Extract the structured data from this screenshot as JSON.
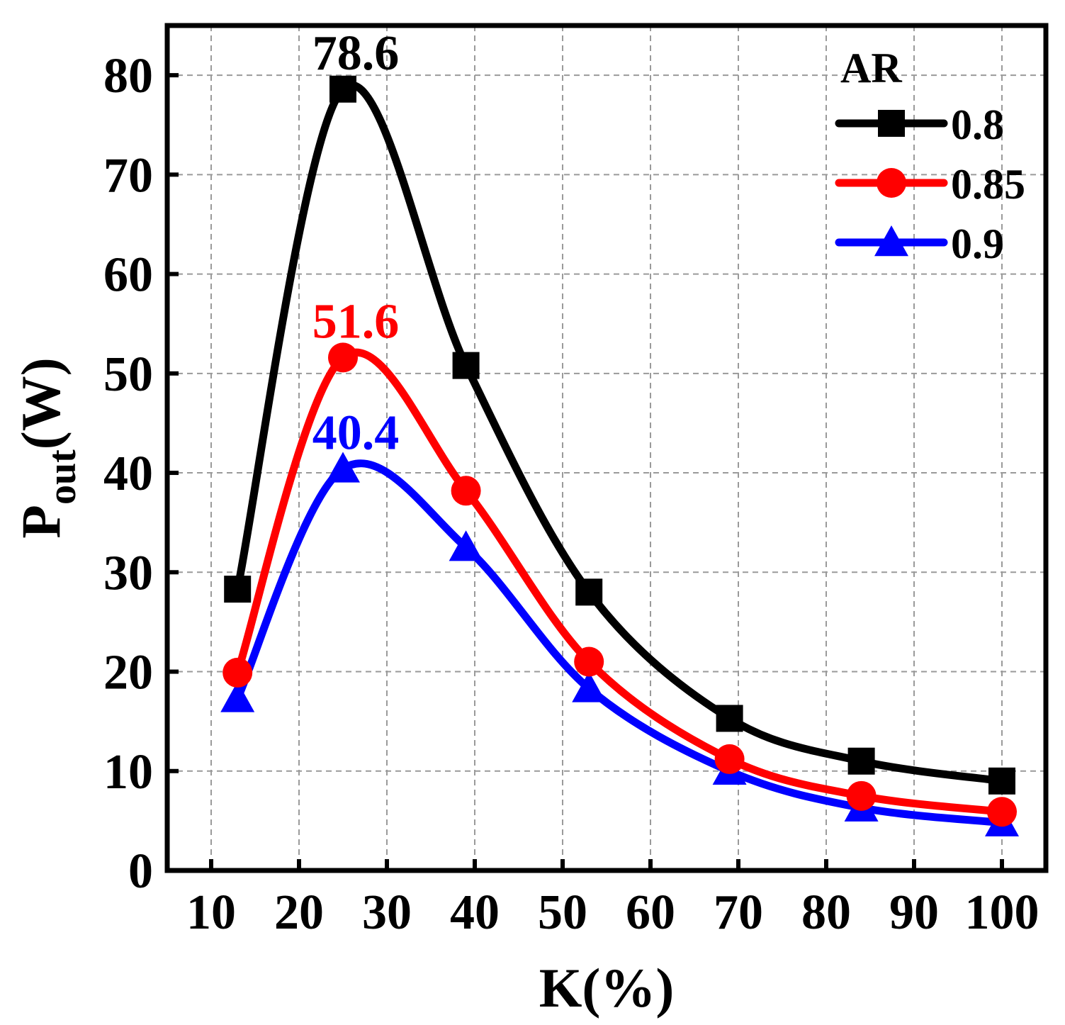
{
  "chart_data": {
    "type": "line",
    "xlabel": "K(%)",
    "ylabel_main": "P",
    "ylabel_sub": "out",
    "ylabel_unit": "(W)",
    "xlim": [
      5,
      105
    ],
    "ylim": [
      0,
      85
    ],
    "xticks": [
      10,
      20,
      30,
      40,
      50,
      60,
      70,
      80,
      90,
      100
    ],
    "yticks": [
      0,
      10,
      20,
      30,
      40,
      50,
      60,
      70,
      80
    ],
    "xtick_labels": [
      "10",
      "20",
      "30",
      "40",
      "50",
      "60",
      "70",
      "80",
      "90",
      "100"
    ],
    "ytick_labels": [
      "0",
      "10",
      "20",
      "30",
      "40",
      "50",
      "60",
      "70",
      "80"
    ],
    "grid": true,
    "legend_title": "AR",
    "legend_position": "top-right",
    "x": [
      13,
      25,
      39,
      53,
      69,
      84,
      100
    ],
    "series": [
      {
        "name": "0.8",
        "color": "#000000",
        "marker": "square",
        "values": [
          28.3,
          78.6,
          50.8,
          28.0,
          15.3,
          11.0,
          9.0
        ],
        "peak_label": "78.6"
      },
      {
        "name": "0.85",
        "color": "#ff0000",
        "marker": "circle",
        "values": [
          19.9,
          51.6,
          38.2,
          21.0,
          11.2,
          7.5,
          5.9
        ],
        "peak_label": "51.6"
      },
      {
        "name": "0.9",
        "color": "#0000ff",
        "marker": "triangle",
        "values": [
          17.3,
          40.4,
          32.5,
          18.3,
          10.0,
          6.3,
          4.8
        ],
        "peak_label": "40.4"
      }
    ]
  }
}
